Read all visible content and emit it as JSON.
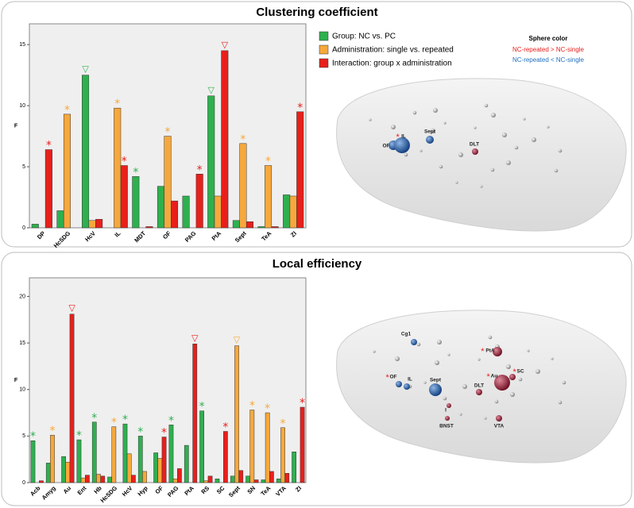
{
  "chart_data": [
    {
      "type": "bar",
      "title": "Clustering coefficient",
      "ylabel": "F",
      "categories": [
        "DP",
        "HcSDG",
        "HcV",
        "IL",
        "MDT",
        "OF",
        "PAG",
        "PtA",
        "Sept",
        "TeA",
        "ZI"
      ],
      "series": [
        {
          "name": "Group: NC vs. PC",
          "color": "#2eb04f",
          "values": [
            0.3,
            1.4,
            12.5,
            0,
            4.2,
            3.4,
            2.6,
            10.8,
            0.6,
            0.1,
            2.7
          ],
          "markers": [
            null,
            null,
            "▽",
            null,
            "*",
            null,
            null,
            "▽",
            null,
            null,
            null
          ]
        },
        {
          "name": "Administration: single vs. repeated",
          "color": "#f6a83c",
          "values": [
            0,
            9.3,
            0.6,
            9.8,
            0,
            7.5,
            0,
            2.6,
            6.9,
            5.1,
            2.6
          ],
          "markers": [
            null,
            "*",
            null,
            "*",
            null,
            "*",
            null,
            null,
            "*",
            "*",
            null
          ]
        },
        {
          "name": "Interaction: group x administration",
          "color": "#e8201c",
          "values": [
            6.4,
            0,
            0.7,
            5.1,
            0.1,
            2.2,
            4.4,
            14.5,
            0.5,
            0.1,
            9.5
          ],
          "markers": [
            "*",
            null,
            null,
            "*",
            null,
            null,
            "*",
            "▽",
            null,
            null,
            "*"
          ]
        }
      ],
      "ylim": [
        0,
        16.7
      ],
      "yticks": [
        0,
        5,
        10,
        15
      ]
    },
    {
      "type": "bar",
      "title": "Local efficiency",
      "ylabel": "F",
      "categories": [
        "Acb",
        "Amyg",
        "Au",
        "Ent",
        "Hb",
        "HcSDG",
        "HcV",
        "Hyp",
        "OF",
        "PAG",
        "PtA",
        "RS",
        "SC",
        "Sept",
        "SN",
        "TeA",
        "VTA",
        "ZI"
      ],
      "series": [
        {
          "color": "#2eb04f",
          "values": [
            4.5,
            2.1,
            2.8,
            4.6,
            6.5,
            0.6,
            6.3,
            5.0,
            3.2,
            6.2,
            4.0,
            7.7,
            0.4,
            0.7,
            0.7,
            0.3,
            0.4,
            3.3
          ],
          "markers": [
            "*",
            null,
            null,
            "*",
            "*",
            null,
            "*",
            "*",
            null,
            "*",
            null,
            "*",
            null,
            null,
            null,
            null,
            null,
            null
          ]
        },
        {
          "color": "#f6a83c",
          "values": [
            0,
            5.1,
            2.2,
            0.5,
            0.9,
            6.0,
            3.1,
            1.2,
            2.6,
            0.4,
            0,
            0.2,
            0,
            14.7,
            7.8,
            7.5,
            5.9,
            0
          ],
          "markers": [
            null,
            "*",
            null,
            null,
            null,
            "*",
            null,
            null,
            null,
            null,
            null,
            null,
            null,
            "▽",
            "*",
            "*",
            "*",
            null
          ]
        },
        {
          "color": "#e8201c",
          "values": [
            0.2,
            0,
            18.1,
            0.8,
            0.7,
            0,
            0.8,
            0,
            4.9,
            1.5,
            14.9,
            0.7,
            5.5,
            1.3,
            0.3,
            1.2,
            1.0,
            8.1
          ],
          "markers": [
            null,
            null,
            "▽",
            null,
            null,
            null,
            null,
            null,
            "*",
            null,
            "▽",
            null,
            "*",
            null,
            null,
            null,
            null,
            "*"
          ]
        }
      ],
      "ylim": [
        0,
        22
      ],
      "yticks": [
        0,
        5,
        10,
        15,
        20
      ]
    }
  ],
  "sphere_legend": {
    "title": "Sphere color",
    "up": "NC-repeated > NC-single",
    "down": "NC-repeated  < NC-single"
  },
  "brains": [
    {
      "labels": [
        {
          "text": "OF"
        },
        {
          "text": "IL",
          "star": "*"
        },
        {
          "text": "Sept"
        },
        {
          "text": "DLT"
        }
      ]
    },
    {
      "labels": [
        {
          "text": "Cg1"
        },
        {
          "text": "PtA",
          "star": "*"
        },
        {
          "text": "OF",
          "star": "*"
        },
        {
          "text": "IL"
        },
        {
          "text": "Sept"
        },
        {
          "text": "DLT"
        },
        {
          "text": "Au",
          "star": "*"
        },
        {
          "text": "SC",
          "star": "*"
        },
        {
          "text": "I"
        },
        {
          "text": "BNST"
        },
        {
          "text": "VTA"
        }
      ]
    }
  ]
}
